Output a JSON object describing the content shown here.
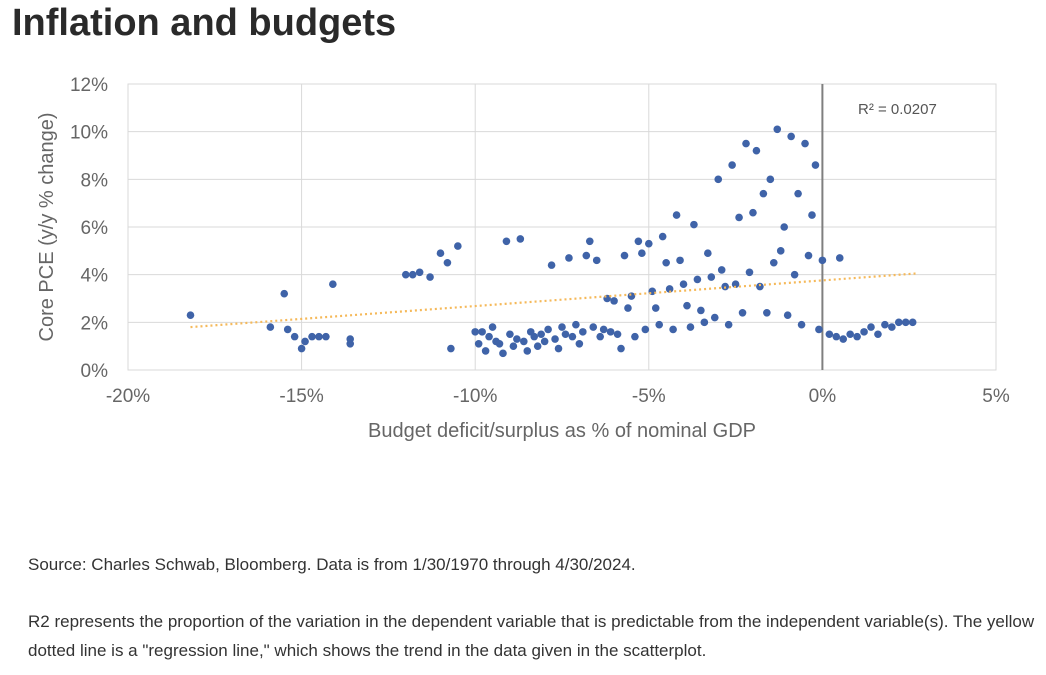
{
  "page": {
    "title": "Inflation and budgets",
    "source_note": "Source: Charles Schwab, Bloomberg. Data is from 1/30/1970 through 4/30/2024.",
    "explanation_note": "R2 represents the proportion of the variation in the dependent variable that is predictable from the independent variable(s). The yellow dotted line is a \"regression line,\" which shows the trend in the data given in the scatterplot."
  },
  "chart_data": {
    "type": "scatter",
    "xlabel": "Budget deficit/surplus as % of nominal GDP",
    "ylabel": "Core PCE (y/y % change)",
    "xlim": [
      -20,
      5
    ],
    "ylim": [
      0,
      12
    ],
    "x_ticks": [
      "-20%",
      "-15%",
      "-10%",
      "-5%",
      "0%",
      "5%"
    ],
    "y_ticks": [
      "0%",
      "2%",
      "4%",
      "6%",
      "8%",
      "10%",
      "12%"
    ],
    "grid": true,
    "annotation": "R² = 0.0207",
    "colors": {
      "points": "#3f63a8",
      "regression": "#f5b95a",
      "zero_line": "#7f7f7f",
      "grid": "#d9d9d9"
    },
    "regression_line": {
      "x": [
        -18.2,
        2.7
      ],
      "y": [
        1.8,
        4.05
      ]
    },
    "points": [
      [
        -18.2,
        2.3
      ],
      [
        -15.9,
        1.8
      ],
      [
        -15.5,
        3.2
      ],
      [
        -15.4,
        1.7
      ],
      [
        -15.2,
        1.4
      ],
      [
        -15.0,
        0.9
      ],
      [
        -14.9,
        1.2
      ],
      [
        -14.7,
        1.4
      ],
      [
        -14.5,
        1.4
      ],
      [
        -14.3,
        1.4
      ],
      [
        -14.1,
        3.6
      ],
      [
        -13.6,
        1.1
      ],
      [
        -13.6,
        1.3
      ],
      [
        -12.0,
        4.0
      ],
      [
        -11.8,
        4.0
      ],
      [
        -11.6,
        4.1
      ],
      [
        -11.3,
        3.9
      ],
      [
        -11.0,
        4.9
      ],
      [
        -10.8,
        4.5
      ],
      [
        -10.7,
        0.9
      ],
      [
        -10.5,
        5.2
      ],
      [
        -10.0,
        1.6
      ],
      [
        -9.9,
        1.1
      ],
      [
        -9.8,
        1.6
      ],
      [
        -9.7,
        0.8
      ],
      [
        -9.6,
        1.4
      ],
      [
        -9.5,
        1.8
      ],
      [
        -9.4,
        1.2
      ],
      [
        -9.3,
        1.1
      ],
      [
        -9.2,
        0.7
      ],
      [
        -9.1,
        5.4
      ],
      [
        -9.0,
        1.5
      ],
      [
        -8.9,
        1.0
      ],
      [
        -8.8,
        1.3
      ],
      [
        -8.7,
        5.5
      ],
      [
        -8.6,
        1.2
      ],
      [
        -8.5,
        0.8
      ],
      [
        -8.4,
        1.6
      ],
      [
        -8.3,
        1.4
      ],
      [
        -8.2,
        1.0
      ],
      [
        -8.1,
        1.5
      ],
      [
        -8.0,
        1.2
      ],
      [
        -7.9,
        1.7
      ],
      [
        -7.8,
        4.4
      ],
      [
        -7.7,
        1.3
      ],
      [
        -7.6,
        0.9
      ],
      [
        -7.5,
        1.8
      ],
      [
        -7.4,
        1.5
      ],
      [
        -7.3,
        4.7
      ],
      [
        -7.2,
        1.4
      ],
      [
        -7.1,
        1.9
      ],
      [
        -7.0,
        1.1
      ],
      [
        -6.9,
        1.6
      ],
      [
        -6.8,
        4.8
      ],
      [
        -6.7,
        5.4
      ],
      [
        -6.6,
        1.8
      ],
      [
        -6.5,
        4.6
      ],
      [
        -6.4,
        1.4
      ],
      [
        -6.3,
        1.7
      ],
      [
        -6.2,
        3.0
      ],
      [
        -6.1,
        1.6
      ],
      [
        -6.0,
        2.9
      ],
      [
        -5.9,
        1.5
      ],
      [
        -5.8,
        0.9
      ],
      [
        -5.7,
        4.8
      ],
      [
        -5.6,
        2.6
      ],
      [
        -5.5,
        3.1
      ],
      [
        -5.4,
        1.4
      ],
      [
        -5.3,
        5.4
      ],
      [
        -5.2,
        4.9
      ],
      [
        -5.1,
        1.7
      ],
      [
        -5.0,
        5.3
      ],
      [
        -4.9,
        3.3
      ],
      [
        -4.8,
        2.6
      ],
      [
        -4.7,
        1.9
      ],
      [
        -4.6,
        5.6
      ],
      [
        -4.5,
        4.5
      ],
      [
        -4.4,
        3.4
      ],
      [
        -4.3,
        1.7
      ],
      [
        -4.2,
        6.5
      ],
      [
        -4.1,
        4.6
      ],
      [
        -4.0,
        3.6
      ],
      [
        -3.9,
        2.7
      ],
      [
        -3.8,
        1.8
      ],
      [
        -3.7,
        6.1
      ],
      [
        -3.6,
        3.8
      ],
      [
        -3.5,
        2.5
      ],
      [
        -3.4,
        2.0
      ],
      [
        -3.3,
        4.9
      ],
      [
        -3.2,
        3.9
      ],
      [
        -3.1,
        2.2
      ],
      [
        -3.0,
        8.0
      ],
      [
        -2.9,
        4.2
      ],
      [
        -2.8,
        3.5
      ],
      [
        -2.7,
        1.9
      ],
      [
        -2.6,
        8.6
      ],
      [
        -2.5,
        3.6
      ],
      [
        -2.4,
        6.4
      ],
      [
        -2.3,
        2.4
      ],
      [
        -2.2,
        9.5
      ],
      [
        -2.1,
        4.1
      ],
      [
        -2.0,
        6.6
      ],
      [
        -1.9,
        9.2
      ],
      [
        -1.8,
        3.5
      ],
      [
        -1.7,
        7.4
      ],
      [
        -1.6,
        2.4
      ],
      [
        -1.5,
        8.0
      ],
      [
        -1.4,
        4.5
      ],
      [
        -1.3,
        10.1
      ],
      [
        -1.2,
        5.0
      ],
      [
        -1.1,
        6.0
      ],
      [
        -1.0,
        2.3
      ],
      [
        -0.9,
        9.8
      ],
      [
        -0.8,
        4.0
      ],
      [
        -0.7,
        7.4
      ],
      [
        -0.6,
        1.9
      ],
      [
        -0.5,
        9.5
      ],
      [
        -0.4,
        4.8
      ],
      [
        -0.3,
        6.5
      ],
      [
        -0.2,
        8.6
      ],
      [
        -0.1,
        1.7
      ],
      [
        0.0,
        4.6
      ],
      [
        0.2,
        1.5
      ],
      [
        0.4,
        1.4
      ],
      [
        0.5,
        4.7
      ],
      [
        0.6,
        1.3
      ],
      [
        0.8,
        1.5
      ],
      [
        1.0,
        1.4
      ],
      [
        1.2,
        1.6
      ],
      [
        1.4,
        1.8
      ],
      [
        1.6,
        1.5
      ],
      [
        1.8,
        1.9
      ],
      [
        2.0,
        1.8
      ],
      [
        2.2,
        2.0
      ],
      [
        2.4,
        2.0
      ],
      [
        2.6,
        2.0
      ]
    ]
  }
}
